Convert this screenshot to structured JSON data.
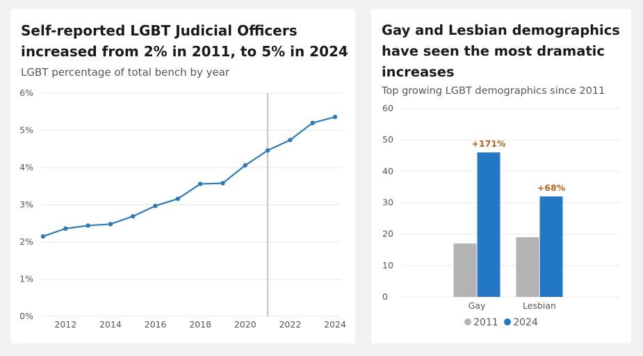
{
  "colors": {
    "line": "#2f7ab8",
    "bar2011": "#b3b3b3",
    "bar2024": "#2378c6",
    "label": "#b5651d",
    "refline": "#888888"
  },
  "chart_data": [
    {
      "type": "line",
      "title_line1": "Self-reported LGBT Judicial Officers",
      "title_line2": "increased from 2% in 2011, to 5% in 2024",
      "subtitle": "LGBT percentage of total bench by year",
      "x": [
        2011,
        2012,
        2013,
        2014,
        2015,
        2016,
        2017,
        2018,
        2019,
        2020,
        2021,
        2022,
        2023,
        2024
      ],
      "values": [
        2.15,
        2.36,
        2.44,
        2.48,
        2.69,
        2.97,
        3.16,
        3.56,
        3.58,
        4.06,
        4.46,
        4.74,
        5.2,
        5.36
      ],
      "xlim": [
        2011,
        2024
      ],
      "ylim": [
        0,
        6
      ],
      "yticks": [
        0,
        1,
        2,
        3,
        4,
        5,
        6
      ],
      "ytick_labels": [
        "0%",
        "1%",
        "2%",
        "3%",
        "4%",
        "5%",
        "6%"
      ],
      "xticks": [
        2012,
        2014,
        2016,
        2018,
        2020,
        2022,
        2024
      ],
      "xtick_labels": [
        "2012",
        "2014",
        "2016",
        "2018",
        "2020",
        "2022",
        "2024"
      ],
      "reference_line_x": 2021,
      "grid": true
    },
    {
      "type": "bar",
      "title_line1": "Gay and Lesbian demographics",
      "title_line2": "have seen the most dramatic",
      "title_line3": "increases",
      "subtitle": "Top growing LGBT demographics since 2011",
      "categories": [
        "Gay",
        "Lesbian"
      ],
      "series": [
        {
          "name": "2011",
          "values": [
            17,
            19
          ]
        },
        {
          "name": "2024",
          "values": [
            46,
            32
          ]
        }
      ],
      "annotations": [
        "+171%",
        "+68%"
      ],
      "ylim": [
        0,
        60
      ],
      "yticks": [
        0,
        10,
        20,
        30,
        40,
        50,
        60
      ],
      "ytick_labels": [
        "0",
        "10",
        "20",
        "30",
        "40",
        "50",
        "60"
      ],
      "legend_position": "bottom",
      "grid": true
    }
  ]
}
